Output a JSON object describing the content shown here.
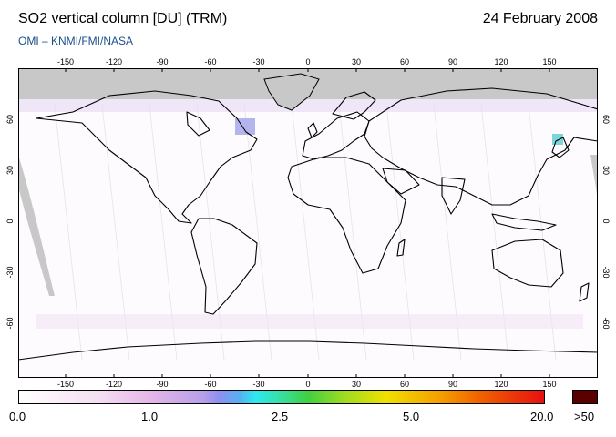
{
  "header": {
    "title": "SO2 vertical column [DU] (TRM)",
    "date": "24 February 2008",
    "subtitle": "OMI  –  KNMI/FMI/NASA"
  },
  "map": {
    "lon_ticks": [
      "-150",
      "-120",
      "-90",
      "-60",
      "-30",
      "0",
      "30",
      "60",
      "90",
      "120",
      "150"
    ],
    "lat_ticks": [
      "60",
      "30",
      "0",
      "-30",
      "-60"
    ],
    "colors": {
      "ocean": "#ffffff",
      "no_data": "#c8c8c8",
      "coast": "#000000"
    }
  },
  "colorbar": {
    "labels": [
      "0.0",
      "1.0",
      "2.5",
      "5.0",
      "20.0"
    ],
    "overflow_label": ">50"
  }
}
